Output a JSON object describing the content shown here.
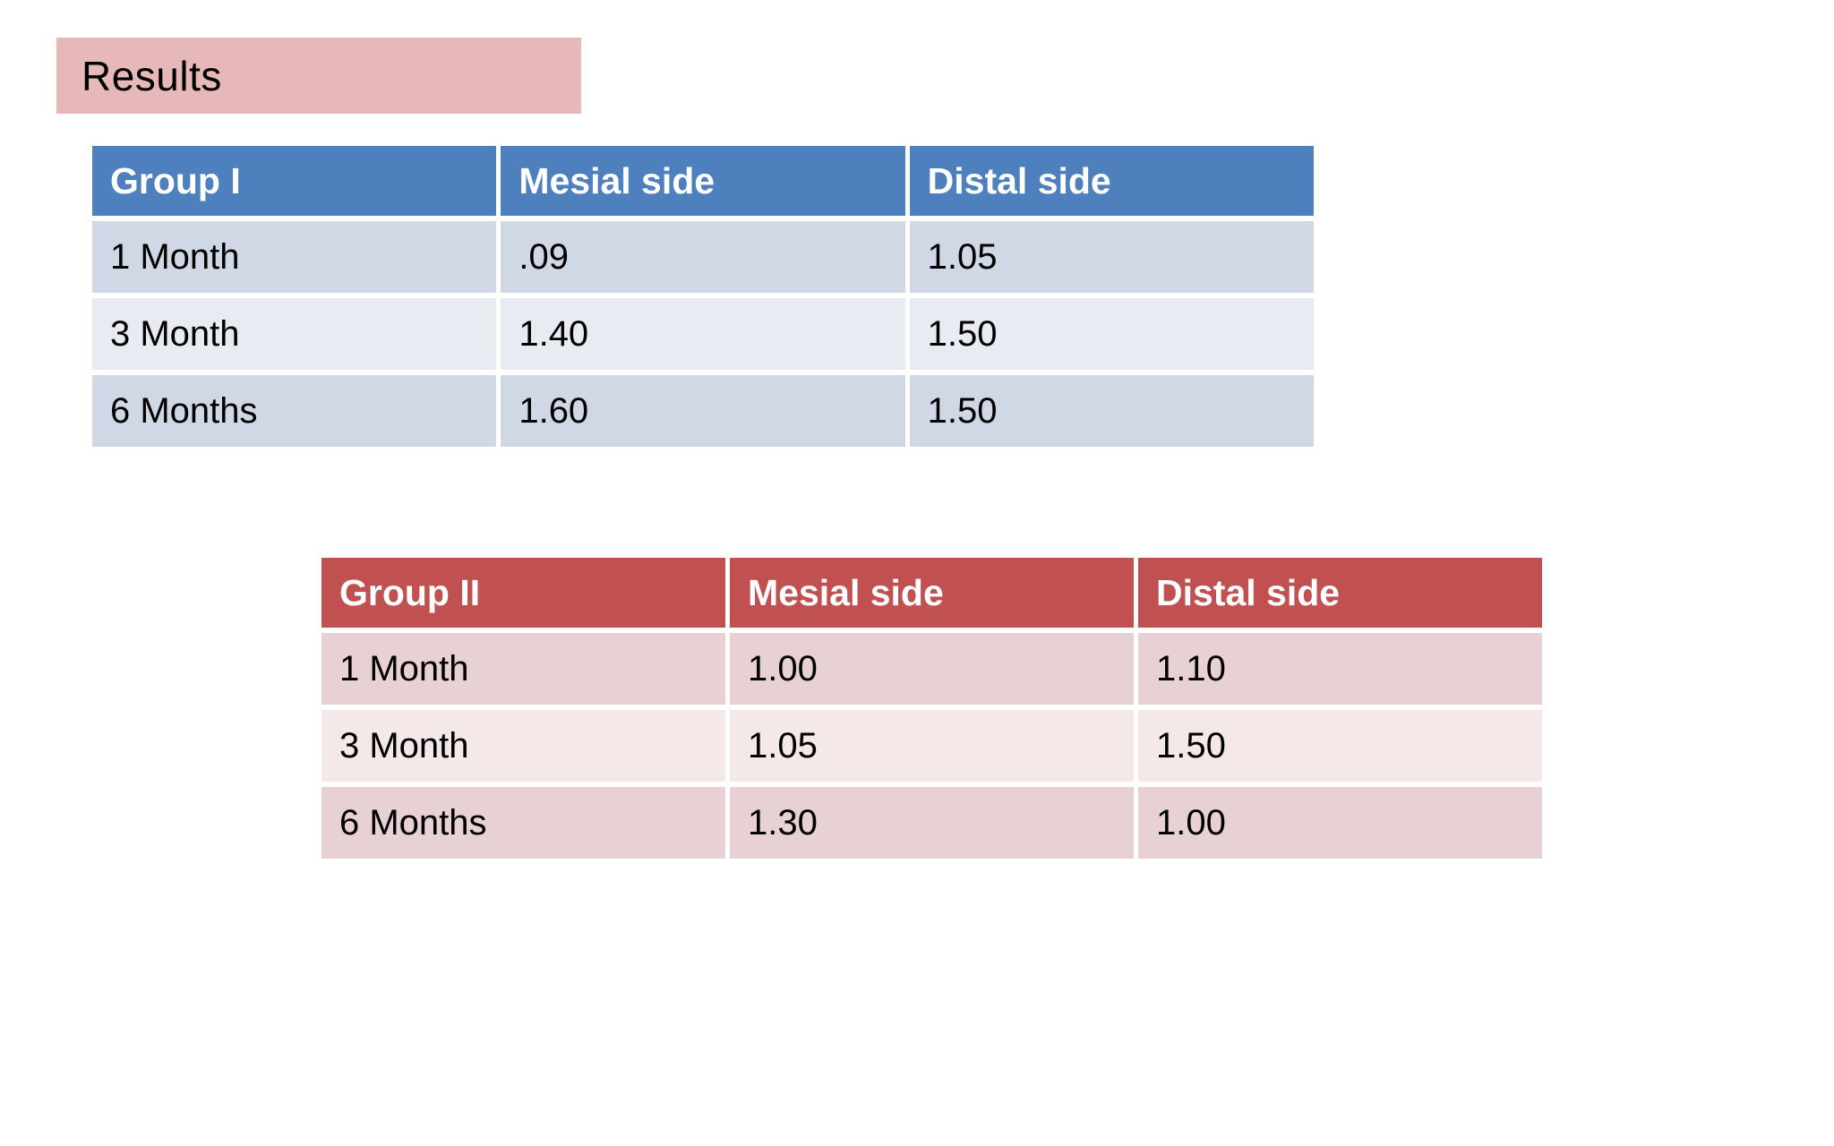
{
  "slide": {
    "title": "Results"
  },
  "theme": {
    "title_bg": "#e6b9b8",
    "group1_header_bg": "#4e80bd",
    "group1_row_odd": "#d0d7e5",
    "group1_row_even": "#e8ebf2",
    "group2_header_bg": "#c05150",
    "group2_row_odd": "#e8d1d5",
    "group2_row_even": "#f4e8e9",
    "header_text": "#ffffff",
    "body_text": "#000000"
  },
  "tables": [
    {
      "id": "group-i",
      "columns": [
        "Group I",
        "Mesial side",
        "Distal side"
      ],
      "rows": [
        [
          "1 Month",
          ".09",
          "1.05"
        ],
        [
          "3 Month",
          "1.40",
          "1.50"
        ],
        [
          "6 Months",
          "1.60",
          "1.50"
        ]
      ]
    },
    {
      "id": "group-ii",
      "columns": [
        "Group II",
        "Mesial side",
        "Distal side"
      ],
      "rows": [
        [
          "1 Month",
          "1.00",
          "1.10"
        ],
        [
          "3 Month",
          "1.05",
          "1.50"
        ],
        [
          "6 Months",
          "1.30",
          "1.00"
        ]
      ]
    }
  ]
}
